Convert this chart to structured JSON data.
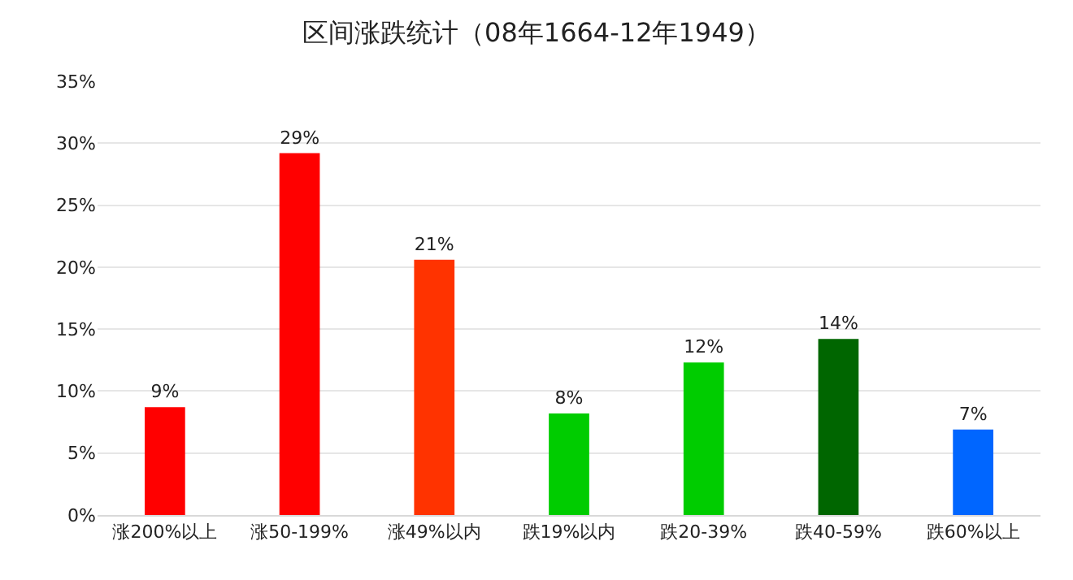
{
  "chart_data": {
    "type": "bar",
    "title": "区间涨跌统计（08年1664-12年1949）",
    "categories": [
      "涨200%以上",
      "涨50-199%",
      "涨49%以内",
      "跌19%以内",
      "跌20-39%",
      "跌40-59%",
      "跌60%以上"
    ],
    "values": [
      8.7,
      29.2,
      20.6,
      8.2,
      12.3,
      14.2,
      6.9
    ],
    "value_labels": [
      "9%",
      "29%",
      "21%",
      "8%",
      "12%",
      "14%",
      "7%"
    ],
    "colors": [
      "#ff0000",
      "#ff0000",
      "#ff3300",
      "#00cc00",
      "#00cc00",
      "#006600",
      "#0066ff"
    ],
    "ylim": [
      0,
      35
    ],
    "yticks": [
      {
        "value": 0,
        "label": "0%"
      },
      {
        "value": 5,
        "label": "5%"
      },
      {
        "value": 10,
        "label": "10%"
      },
      {
        "value": 15,
        "label": "15%"
      },
      {
        "value": 20,
        "label": "20%"
      },
      {
        "value": 25,
        "label": "25%"
      },
      {
        "value": 30,
        "label": "30%"
      },
      {
        "value": 35,
        "label": "35%"
      }
    ],
    "grid": "y"
  }
}
